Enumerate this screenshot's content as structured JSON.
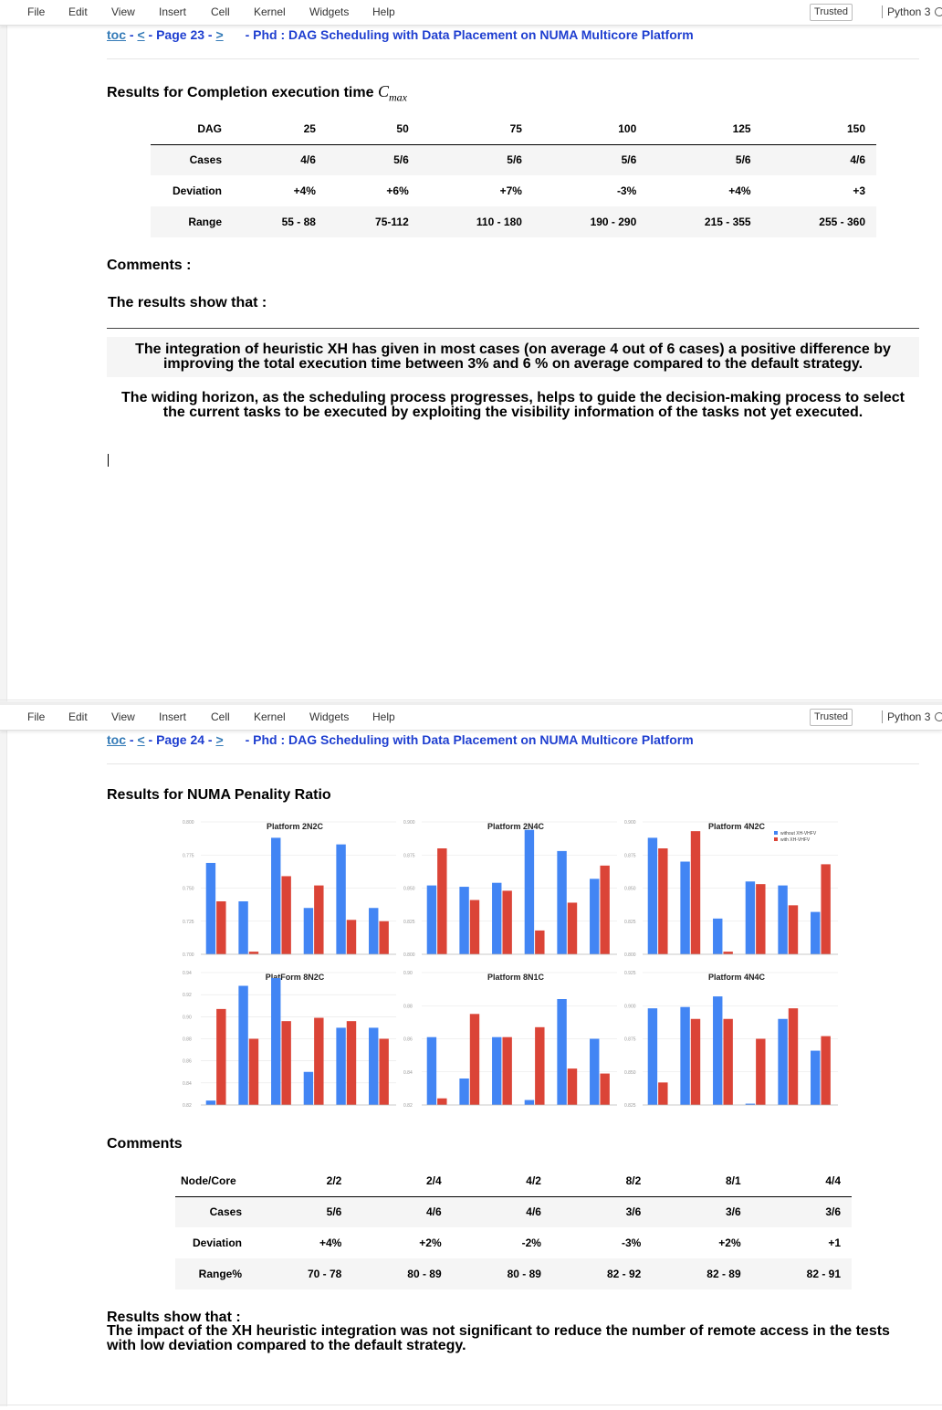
{
  "menu": [
    "File",
    "Edit",
    "View",
    "Insert",
    "Cell",
    "Kernel",
    "Widgets",
    "Help"
  ],
  "trusted_label": "Trusted",
  "kernel_label": "Python 3",
  "pages": [
    {
      "nav": {
        "toc": "toc",
        "prev": "<",
        "page": "Page 23",
        "next": ">",
        "title": "- Phd : DAG Scheduling with Data Placement on NUMA Multicore Platform"
      },
      "heading": "Results for Completion execution time",
      "heading_math": {
        "base": "C",
        "sub": "max"
      },
      "table": {
        "headers": [
          "DAG",
          "25",
          "50",
          "75",
          "100",
          "125",
          "150"
        ],
        "rows": [
          [
            "Cases",
            "4/6",
            "5/6",
            "5/6",
            "5/6",
            "5/6",
            "4/6"
          ],
          [
            "Deviation",
            "+4%",
            "+6%",
            "+7%",
            "-3%",
            "+4%",
            "+3"
          ],
          [
            "Range",
            "55 - 88",
            "75-112",
            "110 - 180",
            "190 - 290",
            "215 - 355",
            "255 - 360"
          ]
        ]
      },
      "comments_label": "Comments :",
      "results_show": "The results show that :",
      "bullets": [
        "The integration of heuristic XH has given in most cases (on average 4 out of 6 cases) a positive difference by improving the total execution time between 3% and 6 % on average compared to the default strategy.",
        "The widing horizon, as the scheduling process progresses, helps to guide the decision-making process to select the current tasks to be executed by exploiting the visibility information of the tasks not yet executed."
      ]
    },
    {
      "nav": {
        "toc": "toc",
        "prev": "<",
        "page": "Page 24",
        "next": ">",
        "title": "- Phd : DAG Scheduling with Data Placement on NUMA Multicore Platform"
      },
      "heading": "Results for NUMA Penality Ratio",
      "comments_label": "Comments",
      "table": {
        "headers": [
          "Node/Core",
          "2/2",
          "2/4",
          "4/2",
          "8/2",
          "8/1",
          "4/4"
        ],
        "rows": [
          [
            "Cases",
            "5/6",
            "4/6",
            "4/6",
            "3/6",
            "3/6",
            "3/6"
          ],
          [
            "Deviation",
            "+4%",
            "+2%",
            "-2%",
            "-3%",
            "+2%",
            "+1"
          ],
          [
            "Range%",
            "70 - 78",
            "80 - 89",
            "80 - 89",
            "82 - 92",
            "82 - 89",
            "82 - 91"
          ]
        ]
      },
      "results_show": "Results show that :",
      "conclusion": "The impact of the XH heuristic integration was not significant to reduce the number of remote access in the tests with low deviation compared to the default strategy."
    }
  ],
  "chart_data": [
    {
      "type": "bar",
      "title": "Platform 2N2C",
      "ylim": [
        0.7,
        0.8
      ],
      "yticks": [
        "0.800",
        "0.775",
        "0.750",
        "0.725",
        "0.700"
      ],
      "series": [
        {
          "color": "#4285f4",
          "values": [
            0.769,
            0.74,
            0.788,
            0.735,
            0.783,
            0.735
          ]
        },
        {
          "color": "#db4437",
          "values": [
            0.74,
            0.702,
            0.759,
            0.752,
            0.726,
            0.725
          ]
        }
      ]
    },
    {
      "type": "bar",
      "title": "Platform 2N4C",
      "ylim": [
        0.8,
        0.9
      ],
      "yticks": [
        "0.900",
        "0.875",
        "0.850",
        "0.825",
        "0.800"
      ],
      "series": [
        {
          "color": "#4285f4",
          "values": [
            0.852,
            0.851,
            0.854,
            0.894,
            0.878,
            0.857
          ]
        },
        {
          "color": "#db4437",
          "values": [
            0.88,
            0.841,
            0.848,
            0.818,
            0.839,
            0.867
          ]
        }
      ]
    },
    {
      "type": "bar",
      "title": "Platform 4N2C",
      "ylim": [
        0.8,
        0.9
      ],
      "yticks": [
        "0.900",
        "0.875",
        "0.850",
        "0.825",
        "0.800"
      ],
      "legend": [
        "without XH-VHFV",
        "with XH-VHFV"
      ],
      "series": [
        {
          "color": "#4285f4",
          "values": [
            0.888,
            0.87,
            0.827,
            0.855,
            0.852,
            0.832
          ]
        },
        {
          "color": "#db4437",
          "values": [
            0.88,
            0.893,
            0.802,
            0.853,
            0.837,
            0.868
          ]
        }
      ]
    },
    {
      "type": "bar",
      "title": "PlatForm 8N2C",
      "ylim": [
        0.82,
        0.94
      ],
      "yticks": [
        "0.94",
        "0.92",
        "0.90",
        "0.88",
        "0.86",
        "0.84",
        "0.82"
      ],
      "series": [
        {
          "color": "#4285f4",
          "values": [
            0.824,
            0.928,
            0.935,
            0.85,
            0.89,
            0.89
          ]
        },
        {
          "color": "#db4437",
          "values": [
            0.907,
            0.88,
            0.896,
            0.899,
            0.896,
            0.88
          ]
        }
      ]
    },
    {
      "type": "bar",
      "title": "Platform 8N1C",
      "ylim": [
        0.82,
        0.9
      ],
      "yticks": [
        "0.90",
        "0.88",
        "0.86",
        "0.84",
        "0.82"
      ],
      "series": [
        {
          "color": "#4285f4",
          "values": [
            0.861,
            0.836,
            0.861,
            0.823,
            0.884,
            0.86
          ]
        },
        {
          "color": "#db4437",
          "values": [
            0.824,
            0.875,
            0.861,
            0.867,
            0.842,
            0.839
          ]
        }
      ]
    },
    {
      "type": "bar",
      "title": "Platform 4N4C",
      "ylim": [
        0.825,
        0.925
      ],
      "yticks": [
        "0.925",
        "0.900",
        "0.875",
        "0.850",
        "0.825"
      ],
      "series": [
        {
          "color": "#4285f4",
          "values": [
            0.898,
            0.899,
            0.907,
            0.826,
            0.89,
            0.866
          ]
        },
        {
          "color": "#db4437",
          "values": [
            0.842,
            0.89,
            0.89,
            0.875,
            0.898,
            0.877
          ]
        }
      ]
    }
  ]
}
